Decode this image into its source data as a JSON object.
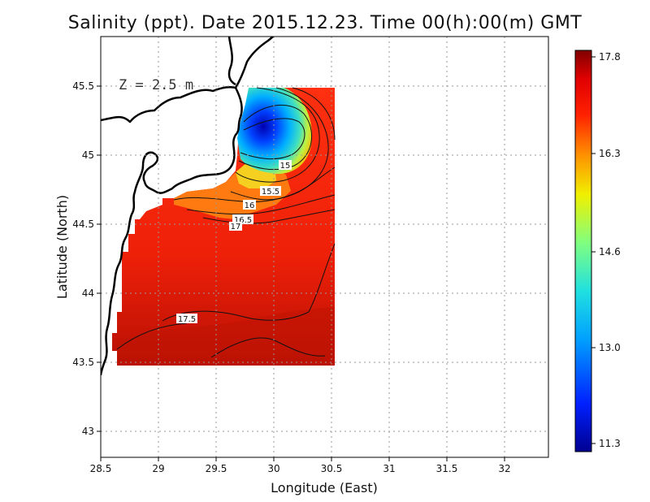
{
  "title": "Salinity (ppt). Date 2015.12.23. Time 00(h):00(m) GMT",
  "depth_label": "Z = 2.5 m",
  "xlabel": "Longitude (East)",
  "ylabel": "Latitude (North)",
  "x_ticks": [
    "28.5",
    "29",
    "29.5",
    "30",
    "30.5",
    "31",
    "31.5",
    "32"
  ],
  "y_ticks": [
    "43",
    "43.5",
    "44",
    "44.5",
    "45",
    "45.5"
  ],
  "colorbar": {
    "ticks": [
      "17.8",
      "16.3",
      "14.6",
      "13.0",
      "11.3"
    ],
    "range": [
      11.3,
      17.8
    ]
  },
  "chart_data": {
    "type": "heatmap",
    "variable": "Salinity (ppt)",
    "xlim": [
      28.5,
      32.4
    ],
    "ylim": [
      42.8,
      45.8
    ],
    "contour_labels": [
      "15",
      "15.5",
      "16",
      "16.5",
      "17",
      "17.5"
    ]
  }
}
